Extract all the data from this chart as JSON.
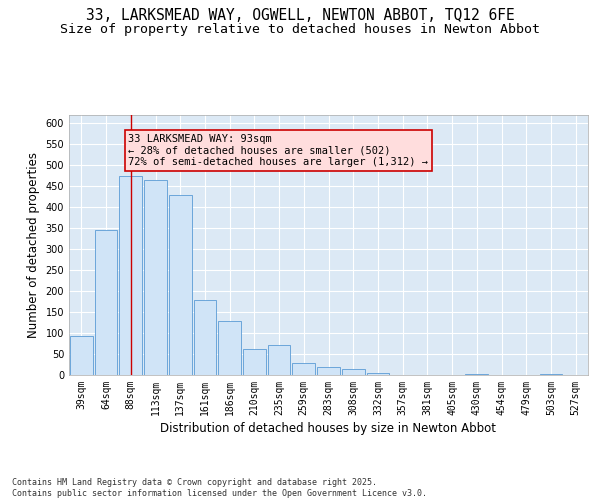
{
  "title_line1": "33, LARKSMEAD WAY, OGWELL, NEWTON ABBOT, TQ12 6FE",
  "title_line2": "Size of property relative to detached houses in Newton Abbot",
  "xlabel": "Distribution of detached houses by size in Newton Abbot",
  "ylabel": "Number of detached properties",
  "bin_labels": [
    "39sqm",
    "64sqm",
    "88sqm",
    "113sqm",
    "137sqm",
    "161sqm",
    "186sqm",
    "210sqm",
    "235sqm",
    "259sqm",
    "283sqm",
    "308sqm",
    "332sqm",
    "357sqm",
    "381sqm",
    "405sqm",
    "430sqm",
    "454sqm",
    "479sqm",
    "503sqm",
    "527sqm"
  ],
  "bar_values": [
    93,
    345,
    475,
    465,
    430,
    178,
    128,
    63,
    72,
    28,
    20,
    14,
    5,
    1,
    1,
    1,
    3,
    0,
    0,
    2,
    0
  ],
  "bar_color": "#d0e4f7",
  "bar_edge_color": "#5b9bd5",
  "annotation_text": "33 LARKSMEAD WAY: 93sqm\n← 28% of detached houses are smaller (502)\n72% of semi-detached houses are larger (1,312) →",
  "vline_bin": 2,
  "vline_color": "#cc0000",
  "annotation_box_facecolor": "#fdd",
  "annotation_box_edgecolor": "#cc0000",
  "ylim": [
    0,
    620
  ],
  "yticks": [
    0,
    50,
    100,
    150,
    200,
    250,
    300,
    350,
    400,
    450,
    500,
    550,
    600
  ],
  "figure_bg": "#ffffff",
  "plot_bg": "#dce9f5",
  "grid_color": "#ffffff",
  "title_fontsize": 10.5,
  "subtitle_fontsize": 9.5,
  "axis_label_fontsize": 8.5,
  "tick_fontsize": 7,
  "annotation_fontsize": 7.5,
  "footer_text": "Contains HM Land Registry data © Crown copyright and database right 2025.\nContains public sector information licensed under the Open Government Licence v3.0."
}
